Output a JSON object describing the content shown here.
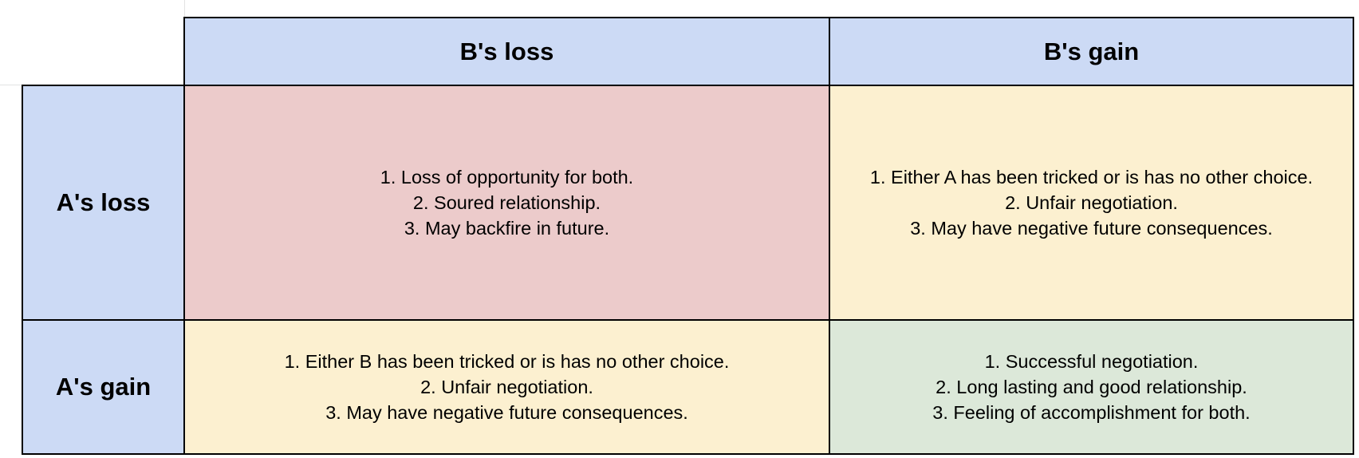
{
  "matrix": {
    "col_headers": [
      "B's loss",
      "B's gain"
    ],
    "row_headers": [
      "A's loss",
      "A's gain"
    ],
    "cells": {
      "a_loss_b_loss": [
        "1. Loss of opportunity for both.",
        "2. Soured relationship.",
        "3. May backfire in future."
      ],
      "a_loss_b_gain": [
        "1. Either A has been tricked or is has no other choice.",
        "2. Unfair negotiation.",
        "3. May have negative future consequences."
      ],
      "a_gain_b_loss": [
        "1. Either B has been tricked or is has no other choice.",
        "2. Unfair negotiation.",
        "3. May have negative future consequences."
      ],
      "a_gain_b_gain": [
        "1. Successful negotiation.",
        "2. Long lasting and good relationship.",
        "3. Feeling of accomplishment for both."
      ]
    },
    "colors": {
      "header": "#ccdaf5",
      "loss_loss": "#eccbcb",
      "mixed": "#fcf0d0",
      "gain_gain": "#dce8d9"
    }
  }
}
